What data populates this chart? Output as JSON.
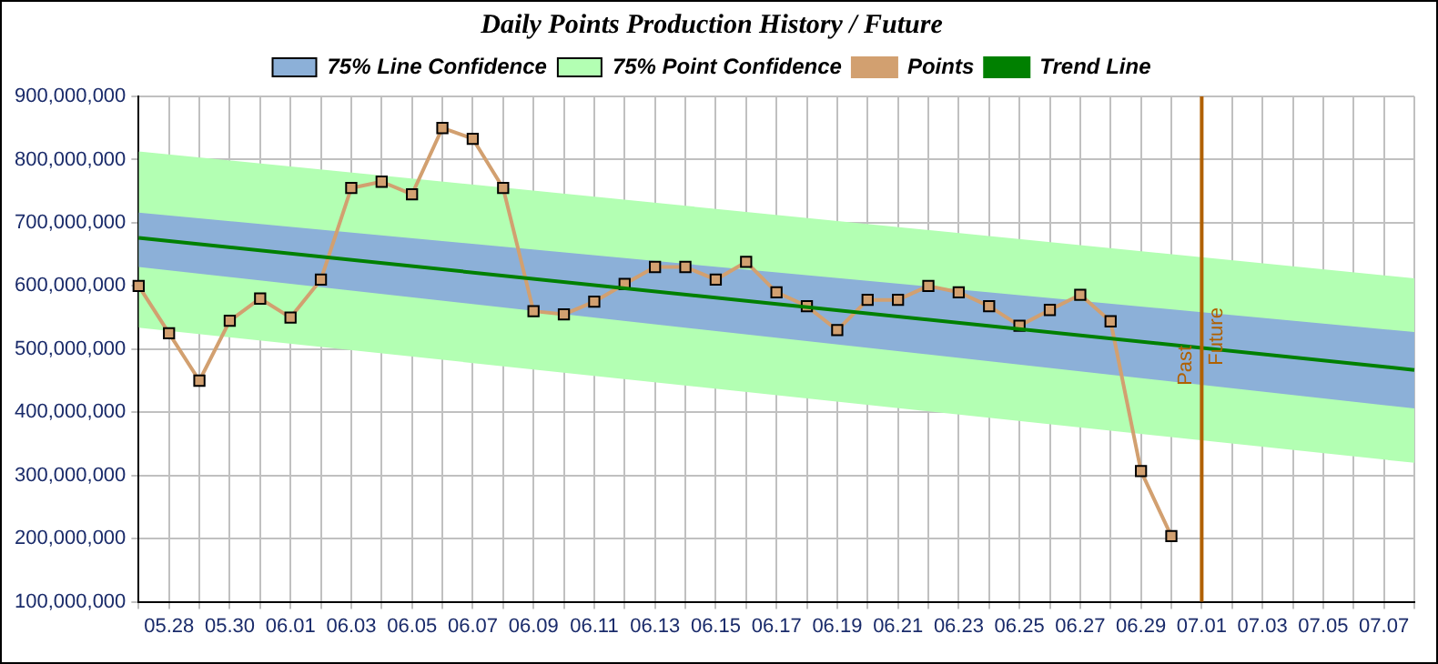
{
  "chart_data": {
    "type": "line",
    "title": "Daily Points Production History / Future",
    "categories": [
      null,
      "05.28",
      null,
      "05.30",
      null,
      "06.01",
      null,
      "06.03",
      null,
      "06.05",
      null,
      "06.07",
      null,
      "06.09",
      null,
      "06.11",
      null,
      "06.13",
      null,
      "06.15",
      null,
      "06.17",
      null,
      "06.19",
      null,
      "06.21",
      null,
      "06.23",
      null,
      "06.25",
      null,
      "06.27",
      null,
      "06.29",
      null,
      "07.01",
      null,
      "07.03",
      null,
      "07.05",
      null,
      "07.07",
      null
    ],
    "series": [
      {
        "name": "75% Line Confidence",
        "type": "area",
        "color": "#8cb0d8",
        "values": [
          null,
          null,
          null,
          null,
          null,
          null,
          null,
          null,
          null,
          null,
          null,
          null,
          null,
          null,
          null,
          null,
          null,
          null,
          null,
          null,
          null,
          null,
          null,
          null,
          null,
          null,
          null,
          null,
          null,
          null,
          null,
          null,
          null,
          null,
          null,
          null,
          null,
          null,
          null,
          null,
          null,
          null,
          null
        ],
        "lower": [
          630000000,
          null,
          null,
          null,
          null,
          null,
          null,
          null,
          null,
          null,
          null,
          null,
          null,
          null,
          null,
          null,
          null,
          null,
          null,
          null,
          null,
          null,
          null,
          null,
          null,
          null,
          null,
          null,
          null,
          null,
          null,
          null,
          null,
          null,
          null,
          null,
          null,
          null,
          null,
          null,
          null,
          null,
          406000000
        ],
        "upper": [
          716000000,
          null,
          null,
          null,
          null,
          null,
          null,
          null,
          null,
          null,
          null,
          null,
          null,
          null,
          null,
          null,
          null,
          null,
          null,
          null,
          null,
          null,
          null,
          null,
          null,
          null,
          null,
          null,
          null,
          null,
          null,
          null,
          null,
          null,
          null,
          null,
          null,
          null,
          null,
          null,
          null,
          null,
          527000000
        ]
      },
      {
        "name": "75% Point Confidence",
        "type": "area",
        "color": "#b3ffb3",
        "values": [
          null,
          null,
          null,
          null,
          null,
          null,
          null,
          null,
          null,
          null,
          null,
          null,
          null,
          null,
          null,
          null,
          null,
          null,
          null,
          null,
          null,
          null,
          null,
          null,
          null,
          null,
          null,
          null,
          null,
          null,
          null,
          null,
          null,
          null,
          null,
          null,
          null,
          null,
          null,
          null,
          null,
          null,
          null
        ],
        "lower": [
          534000000,
          null,
          null,
          null,
          null,
          null,
          null,
          null,
          null,
          null,
          null,
          null,
          null,
          null,
          null,
          null,
          null,
          null,
          null,
          null,
          null,
          null,
          null,
          null,
          null,
          null,
          null,
          null,
          null,
          null,
          null,
          null,
          null,
          null,
          null,
          null,
          null,
          null,
          null,
          null,
          null,
          null,
          320000000
        ],
        "upper": [
          813000000,
          null,
          null,
          null,
          null,
          null,
          null,
          null,
          null,
          null,
          null,
          null,
          null,
          null,
          null,
          null,
          null,
          null,
          null,
          null,
          null,
          null,
          null,
          null,
          null,
          null,
          null,
          null,
          null,
          null,
          null,
          null,
          null,
          null,
          null,
          null,
          null,
          null,
          null,
          null,
          null,
          null,
          612000000
        ]
      },
      {
        "name": "Points",
        "type": "line",
        "color": "#d2a070",
        "marker": "square",
        "values": [
          600000000,
          525000000,
          450000000,
          545000000,
          580000000,
          550000000,
          610000000,
          755000000,
          765000000,
          745000000,
          850000000,
          833000000,
          755000000,
          560000000,
          555000000,
          575000000,
          603000000,
          630000000,
          630000000,
          610000000,
          638000000,
          590000000,
          568000000,
          530000000,
          578000000,
          578000000,
          600000000,
          590000000,
          568000000,
          537000000,
          562000000,
          586000000,
          544000000,
          307000000,
          204000000,
          null,
          null,
          null,
          null,
          null,
          null,
          null,
          null
        ]
      },
      {
        "name": "Trend Line",
        "type": "line",
        "color": "#008000",
        "marker": "none",
        "values": [
          676000000,
          null,
          null,
          null,
          null,
          null,
          null,
          null,
          null,
          null,
          null,
          null,
          null,
          null,
          null,
          null,
          null,
          null,
          null,
          null,
          null,
          null,
          null,
          null,
          null,
          null,
          null,
          null,
          null,
          null,
          null,
          null,
          null,
          null,
          null,
          null,
          null,
          null,
          null,
          null,
          null,
          null,
          467000000
        ]
      }
    ],
    "ylim": [
      100000000,
      900000000
    ],
    "yticks": [
      {
        "value": 100000000,
        "label": "100,000,000"
      },
      {
        "value": 200000000,
        "label": "200,000,000"
      },
      {
        "value": 300000000,
        "label": "300,000,000"
      },
      {
        "value": 400000000,
        "label": "400,000,000"
      },
      {
        "value": 500000000,
        "label": "500,000,000"
      },
      {
        "value": 600000000,
        "label": "600,000,000"
      },
      {
        "value": 700000000,
        "label": "700,000,000"
      },
      {
        "value": 800000000,
        "label": "800,000,000"
      },
      {
        "value": 900000000,
        "label": "900,000,000"
      }
    ],
    "ref_lines": [
      {
        "axis": "x",
        "value": "07.01",
        "label": "Past",
        "color": "#b06000"
      }
    ],
    "annotations": [
      {
        "text": "Future",
        "x": "07.01",
        "y": 520000000
      }
    ],
    "grid": true,
    "legend": "top"
  }
}
